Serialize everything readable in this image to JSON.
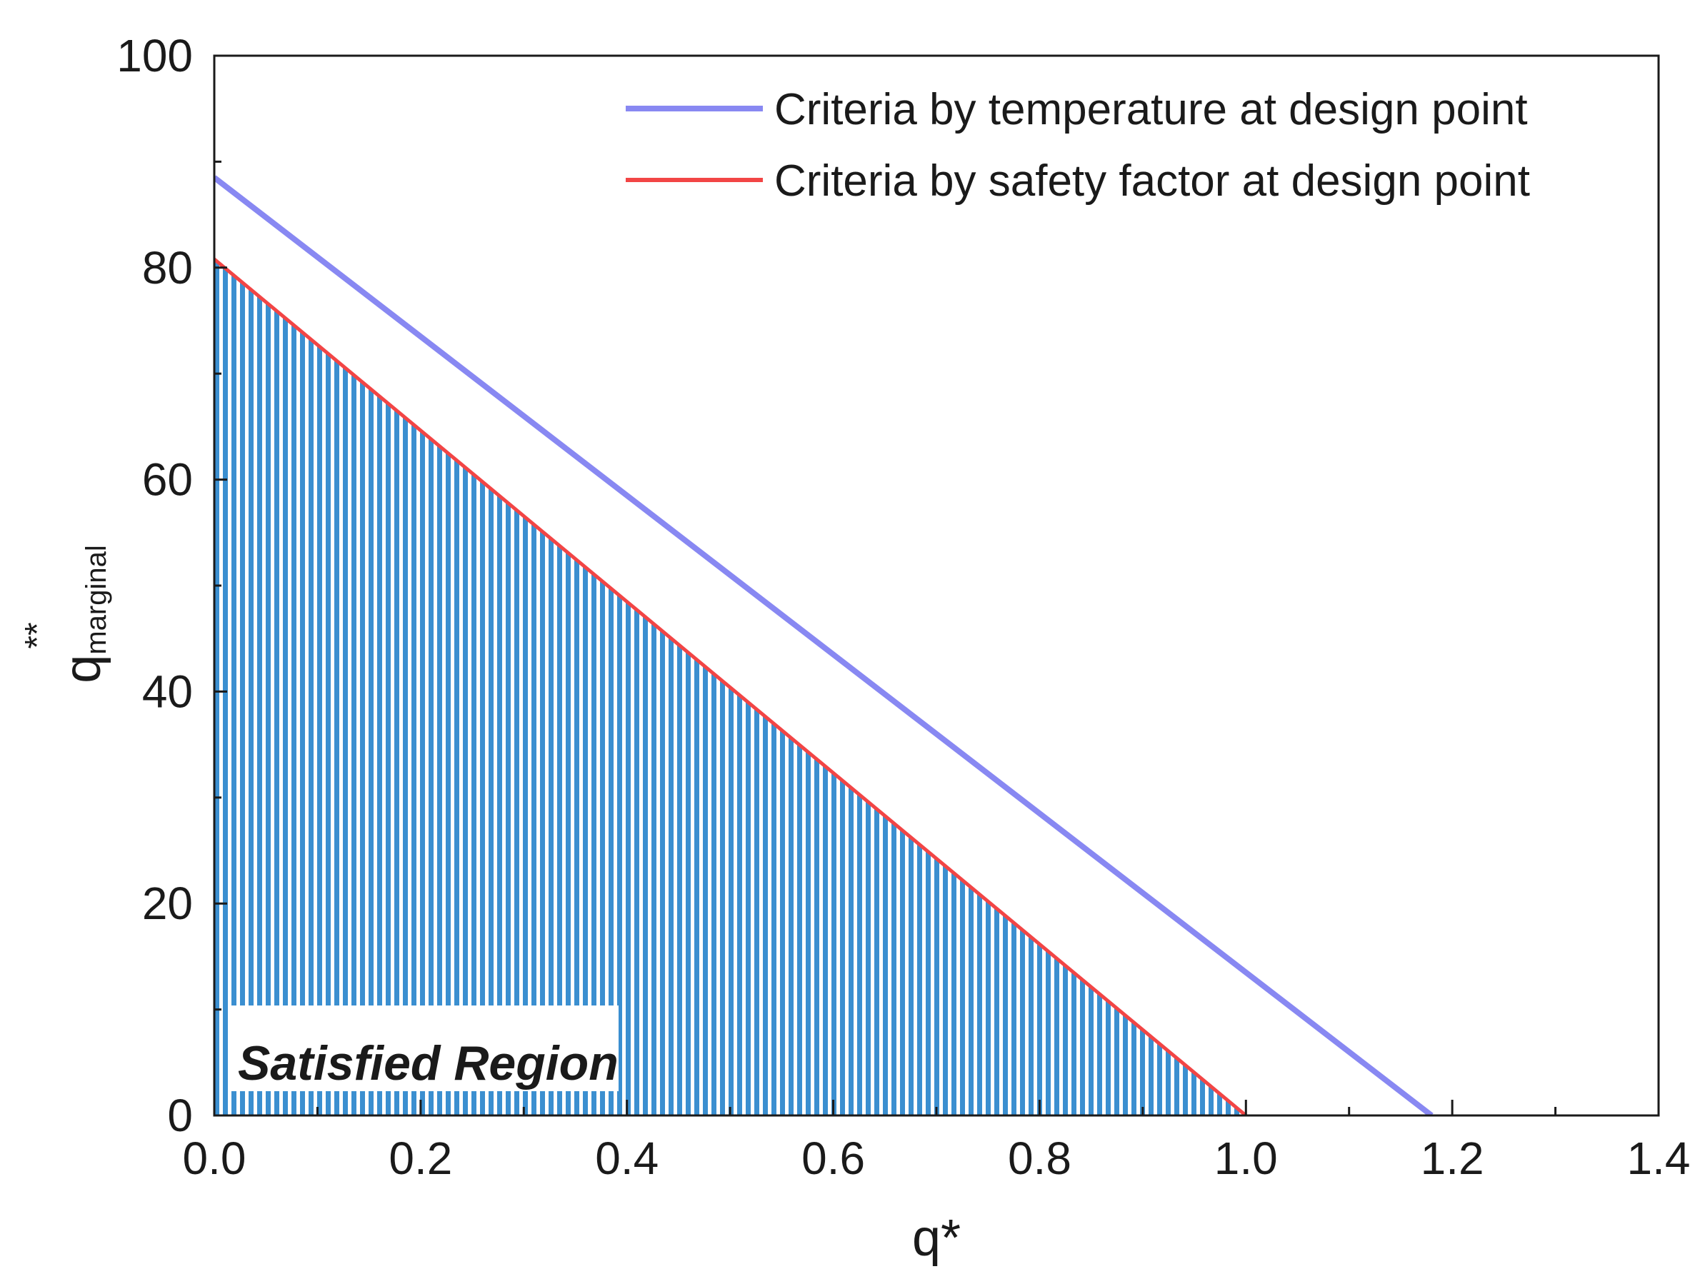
{
  "chart_data": {
    "type": "line",
    "xlabel": "q*",
    "ylabel": {
      "base": "q",
      "superscript": "**",
      "subscript": "marginal"
    },
    "xlim": [
      0.0,
      1.4
    ],
    "ylim": [
      0,
      100
    ],
    "xticks": [
      "0.0",
      "0.2",
      "0.4",
      "0.6",
      "0.8",
      "1.0",
      "1.2",
      "1.4"
    ],
    "yticks": [
      "0",
      "20",
      "40",
      "60",
      "80",
      "100"
    ],
    "grid": false,
    "legend_position": "top-right",
    "series": [
      {
        "name": "Criteria by temperature at design point",
        "color": "#8888f2",
        "x": [
          0.0,
          1.18
        ],
        "y": [
          88.5,
          0
        ]
      },
      {
        "name": "Criteria by safety factor at design point",
        "color": "#f24545",
        "x": [
          0.0,
          1.0
        ],
        "y": [
          80.8,
          0
        ]
      }
    ],
    "shaded_region": {
      "label": "Satisfied Region",
      "bounded_by": "Criteria by safety factor at design point",
      "color": "#3b8fd0",
      "pattern": "vertical-stripes"
    }
  }
}
